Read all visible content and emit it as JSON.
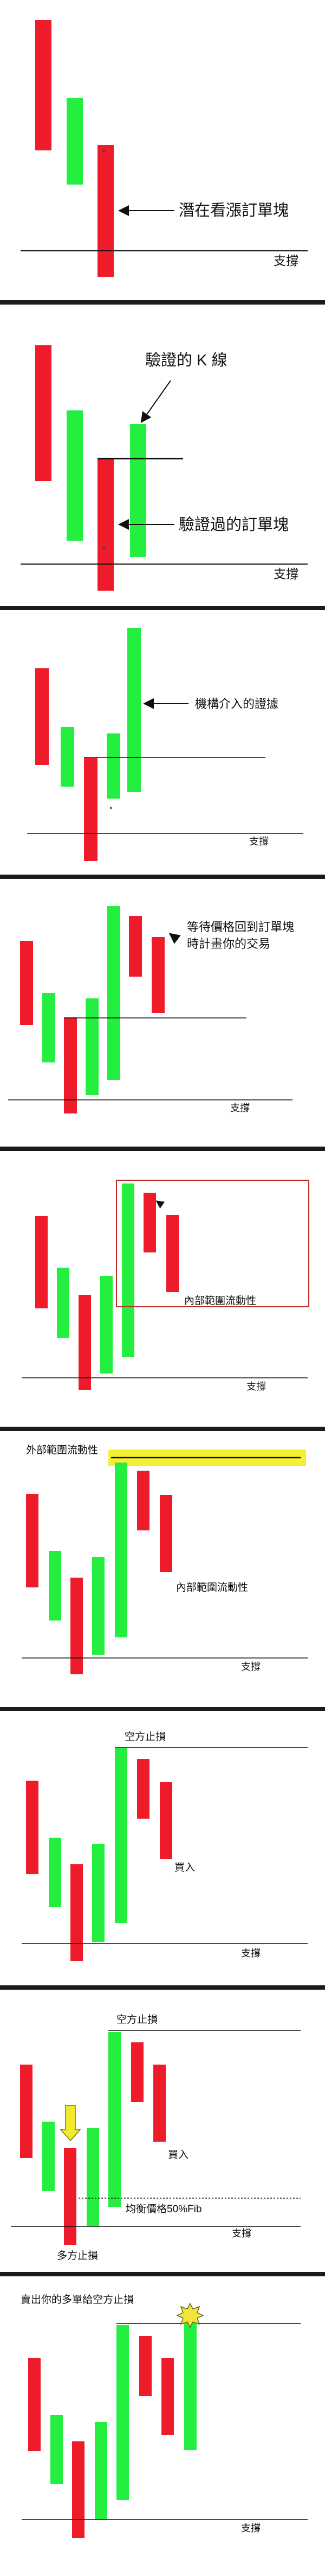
{
  "colors": {
    "bull": "#24ee40",
    "bear": "#ee1c2b",
    "line": "#111111",
    "highlight": "#f4ef33",
    "box": "#c22a2a",
    "arrow_fill": "#f1ea2a",
    "burst": "#f0e63a",
    "separator": "#1b1b1b"
  },
  "panels": [
    {
      "id": "panel-1",
      "labels": {
        "ob": "潛在看漲訂單塊",
        "support": "支撐"
      }
    },
    {
      "id": "panel-2",
      "labels": {
        "kline": "驗證的 K 線",
        "ob": "驗證過的訂單塊",
        "support": "支撐"
      }
    },
    {
      "id": "panel-3",
      "labels": {
        "inst": "機構介入的證據",
        "support": "支撐"
      }
    },
    {
      "id": "panel-4",
      "labels": {
        "wait1": "等待價格回到訂單塊",
        "wait2": "時計畫你的交易",
        "support": "支撐"
      }
    },
    {
      "id": "panel-5",
      "labels": {
        "internal": "內部範圍流動性",
        "support": "支撐"
      }
    },
    {
      "id": "panel-6",
      "labels": {
        "external": "外部範圍流動性",
        "internal": "內部範圍流動性",
        "support": "支撐"
      }
    },
    {
      "id": "panel-7",
      "labels": {
        "stop": "空方止損",
        "buy": "買入",
        "support": "支撐"
      }
    },
    {
      "id": "panel-8",
      "labels": {
        "stop": "空方止損",
        "buy": "買入",
        "fib": "均衡價格50%Fib",
        "support": "支撐",
        "long_stop": "多方止損"
      }
    },
    {
      "id": "panel-9",
      "labels": {
        "sell": "賣出你的多單給空方止損",
        "support": "支撐"
      }
    }
  ]
}
